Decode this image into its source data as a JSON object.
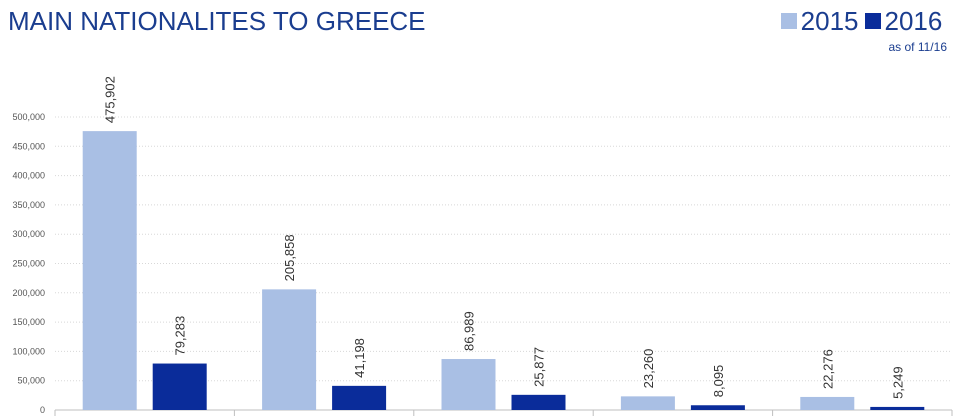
{
  "chart_data": {
    "type": "bar",
    "title": "MAIN NATIONALITES TO GREECE",
    "xlabel": "",
    "ylabel": "",
    "categories": [
      "",
      "",
      "",
      "",
      ""
    ],
    "series": [
      {
        "name": "2015",
        "values": [
          475902,
          205858,
          86989,
          23260,
          22276
        ],
        "labels": [
          "475,902",
          "205,858",
          "86,989",
          "23,260",
          "22,276"
        ],
        "color": "#a9bfe4"
      },
      {
        "name": "2016",
        "note": "as of 11/16",
        "values": [
          79283,
          41198,
          25877,
          8095,
          5249
        ],
        "labels": [
          "79,283",
          "41,198",
          "25,877",
          "8,095",
          "5,249"
        ],
        "color": "#0a2c9a"
      }
    ],
    "ylim": [
      0,
      500000
    ],
    "yticks": [
      0,
      50000,
      100000,
      150000,
      200000,
      250000,
      300000,
      350000,
      400000,
      450000,
      500000
    ],
    "ytick_labels": [
      "0",
      "50,000",
      "100,000",
      "150,000",
      "200,000",
      "250,000",
      "300,000",
      "350,000",
      "400,000",
      "450,000",
      "500,000"
    ],
    "grid": true,
    "legend_position": "top-right"
  }
}
